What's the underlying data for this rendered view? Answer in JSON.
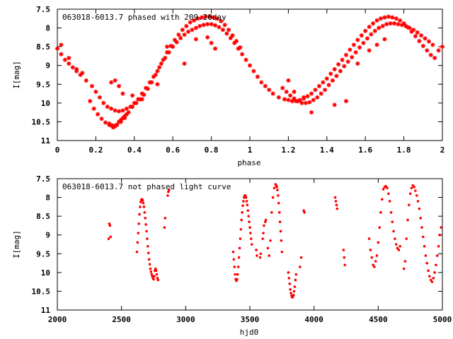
{
  "chart_data": [
    {
      "type": "scatter",
      "title": "063018-6013.7 phased with 209.20day",
      "xlabel": "phase",
      "ylabel": "I[mag]",
      "xlim": [
        0,
        2
      ],
      "ylim": [
        7.5,
        11
      ],
      "y_inverted": true,
      "grid": false,
      "x_ticks": [
        "0",
        "0.2",
        "0.4",
        "0.6",
        "0.8",
        "1",
        "1.2",
        "1.4",
        "1.6",
        "1.8",
        "2"
      ],
      "y_ticks": [
        "7.5",
        "8",
        "8.5",
        "9",
        "9.5",
        "10",
        "10.5",
        "11"
      ],
      "marker_color": "#ff0000",
      "marker": "asterisk",
      "series": [
        {
          "x": [
            0.0,
            0.02,
            0.04,
            0.06,
            0.08,
            0.1,
            0.12,
            0.15,
            0.18,
            0.2,
            0.22,
            0.24,
            0.26,
            0.28,
            0.3,
            0.32,
            0.34,
            0.36,
            0.38,
            0.4,
            0.42,
            0.44,
            0.46,
            0.48,
            0.5,
            0.52,
            0.54,
            0.56,
            0.58,
            0.6,
            0.62,
            0.64,
            0.66,
            0.68,
            0.7,
            0.72,
            0.74,
            0.76,
            0.78,
            0.8,
            0.82,
            0.84,
            0.86,
            0.88,
            0.9,
            0.92,
            0.94,
            0.96,
            0.98,
            1.0,
            1.02,
            1.04,
            1.06,
            1.08,
            1.1,
            1.12,
            1.15,
            1.18,
            1.2,
            1.22,
            1.24,
            1.26,
            1.28,
            1.3,
            1.32,
            1.34,
            1.36,
            1.38,
            1.4,
            1.42,
            1.44,
            1.46,
            1.48,
            1.5,
            1.52,
            1.54,
            1.56,
            1.58,
            1.6,
            1.62,
            1.64,
            1.66,
            1.68,
            1.7,
            1.72,
            1.74,
            1.76,
            1.78,
            1.8,
            1.82,
            1.84,
            1.86,
            1.88,
            1.9,
            1.92,
            1.94,
            1.96,
            1.98,
            2.0,
            0.17,
            0.19,
            0.21,
            0.23,
            0.25,
            0.27,
            0.29,
            0.31,
            0.33,
            0.35,
            0.37,
            0.39,
            0.41,
            0.43,
            0.45,
            0.47,
            0.49,
            0.51,
            0.53,
            0.55,
            0.57,
            0.59,
            0.61,
            0.63,
            0.65,
            0.67,
            0.69,
            0.71,
            0.73,
            0.75,
            0.77,
            0.79,
            0.81,
            0.83,
            0.85,
            0.87,
            0.89,
            0.91,
            0.93,
            0.95,
            1.17,
            1.19,
            1.21,
            1.23,
            1.25,
            1.27,
            1.29,
            1.31,
            1.33,
            1.35,
            1.37,
            1.39,
            1.41,
            1.43,
            1.45,
            1.47,
            1.49,
            1.51,
            1.53,
            1.55,
            1.57,
            1.59,
            1.61,
            1.63,
            1.65,
            1.67,
            1.69,
            1.71,
            1.73,
            1.75,
            1.77,
            1.79,
            1.81,
            1.83,
            1.85,
            1.87,
            1.89,
            1.91,
            1.93,
            1.95,
            0.27,
            0.28,
            0.29,
            0.3,
            0.31,
            0.32,
            0.33,
            0.34,
            0.35,
            0.36,
            0.28,
            0.3,
            0.32,
            0.34,
            0.39,
            0.44,
            0.52,
            0.57,
            0.66,
            0.72,
            0.78,
            0.8,
            0.82,
            1.2,
            1.23,
            1.28,
            1.32,
            1.44,
            1.5,
            1.56,
            1.62,
            1.66,
            1.7,
            0.02,
            0.06,
            0.1,
            0.13
          ],
          "y": [
            8.55,
            8.7,
            8.85,
            8.95,
            9.05,
            9.15,
            9.25,
            9.4,
            9.55,
            9.7,
            9.85,
            10.0,
            10.1,
            10.15,
            10.2,
            10.22,
            10.2,
            10.15,
            10.1,
            10.0,
            9.9,
            9.75,
            9.6,
            9.45,
            9.3,
            9.15,
            8.95,
            8.8,
            8.65,
            8.5,
            8.38,
            8.27,
            8.18,
            8.1,
            8.05,
            8.0,
            7.95,
            7.92,
            7.9,
            7.9,
            7.93,
            7.98,
            8.05,
            8.15,
            8.27,
            8.4,
            8.55,
            8.7,
            8.85,
            9.0,
            9.15,
            9.3,
            9.45,
            9.55,
            9.65,
            9.75,
            9.85,
            9.9,
            9.92,
            9.95,
            9.95,
            9.92,
            9.88,
            9.82,
            9.75,
            9.65,
            9.55,
            9.45,
            9.35,
            9.22,
            9.1,
            8.97,
            8.85,
            8.72,
            8.58,
            8.45,
            8.32,
            8.2,
            8.08,
            7.97,
            7.88,
            7.8,
            7.75,
            7.72,
            7.7,
            7.72,
            7.75,
            7.8,
            7.88,
            7.98,
            8.1,
            8.22,
            8.35,
            8.48,
            8.6,
            8.72,
            8.8,
            8.6,
            8.5,
            9.95,
            10.15,
            10.3,
            10.42,
            10.52,
            10.58,
            10.6,
            10.58,
            10.5,
            10.4,
            10.25,
            10.1,
            10.0,
            9.9,
            9.78,
            9.62,
            9.45,
            9.25,
            9.05,
            8.85,
            8.65,
            8.48,
            8.32,
            8.18,
            8.05,
            7.95,
            7.85,
            7.8,
            7.75,
            7.72,
            7.7,
            7.7,
            7.72,
            7.75,
            7.82,
            7.92,
            8.05,
            8.2,
            8.35,
            8.52,
            9.6,
            9.7,
            9.8,
            9.88,
            9.95,
            10.0,
            10.0,
            9.98,
            9.92,
            9.85,
            9.75,
            9.65,
            9.52,
            9.4,
            9.28,
            9.15,
            9.02,
            8.9,
            8.78,
            8.65,
            8.52,
            8.4,
            8.28,
            8.17,
            8.08,
            8.0,
            7.95,
            7.9,
            7.88,
            7.88,
            7.9,
            7.92,
            7.95,
            8.0,
            8.05,
            8.12,
            8.2,
            8.28,
            8.36,
            8.45,
            10.55,
            10.6,
            10.65,
            10.62,
            10.58,
            10.5,
            10.45,
            10.4,
            10.35,
            10.3,
            9.45,
            9.4,
            9.55,
            9.75,
            9.8,
            9.9,
            9.5,
            8.5,
            8.95,
            8.3,
            8.25,
            8.4,
            8.55,
            9.4,
            9.7,
            9.85,
            10.25,
            10.05,
            9.95,
            8.95,
            8.6,
            8.45,
            8.3,
            8.45,
            8.8,
            9.1,
            9.2
          ]
        }
      ]
    },
    {
      "type": "scatter",
      "title": "063018-6013.7 not phased light curve",
      "xlabel": "hjd0",
      "ylabel": "I[mag]",
      "xlim": [
        2000,
        5000
      ],
      "ylim": [
        7.5,
        11
      ],
      "y_inverted": true,
      "grid": false,
      "x_ticks": [
        "2000",
        "2500",
        "3000",
        "3500",
        "4000",
        "4500",
        "5000"
      ],
      "y_ticks": [
        "7.5",
        "8",
        "8.5",
        "9",
        "9.5",
        "10",
        "10.5",
        "11"
      ],
      "marker_color": "#ff0000",
      "marker": "dot",
      "series": [
        {
          "x": [
            2400,
            2405,
            2410,
            2415,
            2620,
            2625,
            2630,
            2635,
            2640,
            2645,
            2650,
            2655,
            2660,
            2665,
            2670,
            2675,
            2680,
            2685,
            2690,
            2695,
            2700,
            2705,
            2710,
            2715,
            2720,
            2725,
            2730,
            2735,
            2740,
            2745,
            2750,
            2755,
            2760,
            2765,
            2770,
            2775,
            2780,
            2785,
            2835,
            2840,
            2860,
            2865,
            2870,
            3370,
            3375,
            3380,
            3385,
            3390,
            3395,
            3400,
            3405,
            3410,
            3415,
            3420,
            3425,
            3430,
            3435,
            3440,
            3445,
            3450,
            3455,
            3460,
            3465,
            3470,
            3475,
            3480,
            3485,
            3490,
            3495,
            3500,
            3505,
            3510,
            3515,
            3550,
            3555,
            3580,
            3585,
            3600,
            3605,
            3610,
            3620,
            3625,
            3640,
            3650,
            3660,
            3670,
            3680,
            3690,
            3700,
            3705,
            3710,
            3715,
            3720,
            3725,
            3730,
            3735,
            3740,
            3745,
            3750,
            3800,
            3805,
            3810,
            3815,
            3820,
            3825,
            3830,
            3835,
            3840,
            3845,
            3850,
            3855,
            3860,
            3890,
            3900,
            3920,
            3925,
            4165,
            4170,
            4175,
            4180,
            4230,
            4235,
            4240,
            4430,
            4440,
            4450,
            4460,
            4470,
            4480,
            4490,
            4500,
            4510,
            4520,
            4530,
            4540,
            4550,
            4560,
            4570,
            4580,
            4590,
            4600,
            4610,
            4620,
            4630,
            4640,
            4650,
            4660,
            4670,
            4700,
            4710,
            4720,
            4730,
            4740,
            4750,
            4760,
            4770,
            4780,
            4790,
            4800,
            4810,
            4820,
            4830,
            4840,
            4850,
            4860,
            4870,
            4880,
            4890,
            4900,
            4910,
            4920,
            4930,
            4940,
            4950,
            4960,
            4970,
            4980,
            4990
          ],
          "y": [
            9.1,
            8.7,
            8.75,
            9.05,
            9.45,
            9.2,
            8.95,
            8.7,
            8.45,
            8.25,
            8.12,
            8.06,
            8.05,
            8.08,
            8.15,
            8.25,
            8.4,
            8.55,
            8.72,
            8.9,
            9.1,
            9.3,
            9.48,
            9.65,
            9.78,
            9.9,
            9.98,
            10.05,
            10.1,
            10.15,
            10.18,
            10.1,
            9.95,
            9.9,
            9.95,
            10.05,
            10.15,
            10.2,
            8.8,
            8.55,
            7.95,
            7.85,
            7.8,
            9.45,
            9.65,
            9.85,
            10.05,
            10.18,
            10.22,
            10.18,
            10.05,
            9.85,
            9.6,
            9.35,
            9.1,
            8.85,
            8.6,
            8.4,
            8.22,
            8.1,
            8.0,
            7.95,
            7.95,
            8.0,
            8.1,
            8.2,
            8.35,
            8.5,
            8.65,
            8.8,
            8.95,
            9.1,
            9.25,
            9.4,
            9.55,
            9.6,
            9.5,
            9.1,
            8.95,
            8.75,
            8.65,
            8.6,
            9.35,
            9.55,
            9.15,
            8.4,
            8.0,
            7.75,
            7.65,
            7.68,
            7.72,
            7.8,
            7.95,
            8.15,
            8.4,
            8.65,
            8.9,
            9.15,
            9.45,
            10.0,
            10.15,
            10.3,
            10.45,
            10.55,
            10.62,
            10.66,
            10.65,
            10.6,
            10.5,
            10.38,
            10.2,
            10.05,
            9.85,
            9.6,
            8.35,
            8.4,
            8.0,
            8.1,
            8.2,
            8.3,
            9.4,
            9.6,
            9.8,
            9.1,
            9.4,
            9.6,
            9.8,
            9.85,
            9.7,
            9.55,
            9.2,
            8.8,
            8.4,
            8.05,
            7.78,
            7.72,
            7.7,
            7.75,
            7.9,
            8.1,
            8.4,
            8.65,
            8.9,
            9.1,
            9.25,
            9.35,
            9.4,
            9.3,
            9.9,
            9.7,
            9.1,
            8.6,
            8.2,
            7.9,
            7.75,
            7.68,
            7.72,
            7.82,
            7.95,
            8.1,
            8.3,
            8.55,
            8.8,
            9.05,
            9.3,
            9.55,
            9.75,
            9.95,
            10.1,
            10.2,
            10.25,
            10.15,
            10.0,
            9.8,
            9.55,
            9.3,
            9.0,
            8.8
          ]
        }
      ]
    }
  ]
}
